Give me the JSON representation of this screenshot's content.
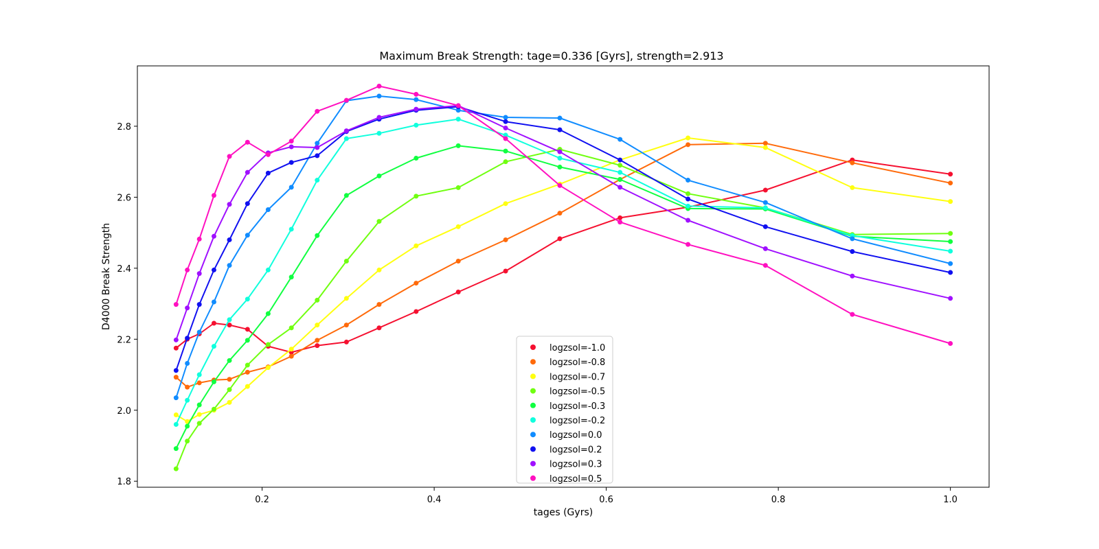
{
  "chart_data": {
    "type": "line",
    "title": "Maximum Break Strength: tage=0.336 [Gyrs], strength=2.913",
    "xlabel": "tages (Gyrs)",
    "ylabel": "D4000 Break Strength",
    "xlim": [
      0.055,
      1.045
    ],
    "ylim": [
      1.783,
      2.97
    ],
    "xticks": [
      0.2,
      0.4,
      0.6,
      0.8,
      1.0
    ],
    "xtick_labels": [
      "0.2",
      "0.4",
      "0.6",
      "0.8",
      "1.0"
    ],
    "yticks": [
      1.8,
      2.0,
      2.2,
      2.4,
      2.6,
      2.8
    ],
    "ytick_labels": [
      "1.8",
      "2.0",
      "2.2",
      "2.4",
      "2.6",
      "2.8"
    ],
    "grid": false,
    "legend_position": "bottom-center",
    "x": [
      0.1,
      0.113,
      0.127,
      0.144,
      0.162,
      0.183,
      0.207,
      0.234,
      0.264,
      0.298,
      0.336,
      0.379,
      0.428,
      0.483,
      0.546,
      0.616,
      0.695,
      0.785,
      0.886,
      1.0
    ],
    "series": [
      {
        "name": "logzsol=-1.0",
        "color": "#f51030",
        "values": [
          2.175,
          2.2,
          2.215,
          2.245,
          2.24,
          2.228,
          2.18,
          2.163,
          2.182,
          2.192,
          2.232,
          2.278,
          2.333,
          2.392,
          2.483,
          2.542,
          2.572,
          2.62,
          2.705,
          2.665
        ]
      },
      {
        "name": "logzsol=-0.8",
        "color": "#ff6a0a",
        "values": [
          2.093,
          2.065,
          2.077,
          2.085,
          2.087,
          2.107,
          2.122,
          2.152,
          2.197,
          2.24,
          2.298,
          2.358,
          2.42,
          2.48,
          2.555,
          2.65,
          2.748,
          2.752,
          2.697,
          2.64
        ]
      },
      {
        "name": "logzsol=-0.7",
        "color": "#ffff10",
        "values": [
          1.987,
          1.968,
          1.988,
          2.0,
          2.022,
          2.067,
          2.12,
          2.172,
          2.24,
          2.315,
          2.395,
          2.463,
          2.517,
          2.582,
          2.637,
          2.705,
          2.767,
          2.74,
          2.627,
          2.588
        ]
      },
      {
        "name": "logzsol=-0.5",
        "color": "#70ff10",
        "values": [
          1.835,
          1.913,
          1.963,
          2.003,
          2.058,
          2.127,
          2.185,
          2.232,
          2.31,
          2.42,
          2.532,
          2.603,
          2.627,
          2.7,
          2.735,
          2.69,
          2.61,
          2.57,
          2.495,
          2.498
        ]
      },
      {
        "name": "logzsol=-0.3",
        "color": "#10ff40",
        "values": [
          1.892,
          1.955,
          2.015,
          2.08,
          2.14,
          2.197,
          2.272,
          2.375,
          2.492,
          2.605,
          2.66,
          2.71,
          2.745,
          2.73,
          2.685,
          2.65,
          2.568,
          2.567,
          2.49,
          2.475
        ]
      },
      {
        "name": "logzsol=-0.2",
        "color": "#10ffdd",
        "values": [
          1.96,
          2.028,
          2.1,
          2.18,
          2.255,
          2.313,
          2.395,
          2.51,
          2.648,
          2.765,
          2.78,
          2.803,
          2.82,
          2.775,
          2.71,
          2.67,
          2.575,
          2.57,
          2.492,
          2.448
        ]
      },
      {
        "name": "logzsol=0.0",
        "color": "#108cff",
        "values": [
          2.035,
          2.132,
          2.22,
          2.305,
          2.408,
          2.493,
          2.565,
          2.628,
          2.752,
          2.872,
          2.885,
          2.875,
          2.845,
          2.825,
          2.823,
          2.763,
          2.648,
          2.585,
          2.483,
          2.413
        ]
      },
      {
        "name": "logzsol=0.2",
        "color": "#1010f0",
        "values": [
          2.112,
          2.203,
          2.298,
          2.395,
          2.48,
          2.582,
          2.668,
          2.698,
          2.717,
          2.785,
          2.82,
          2.845,
          2.855,
          2.813,
          2.79,
          2.705,
          2.595,
          2.517,
          2.447,
          2.388
        ]
      },
      {
        "name": "logzsol=0.3",
        "color": "#a010ff",
        "values": [
          2.198,
          2.288,
          2.385,
          2.49,
          2.58,
          2.67,
          2.725,
          2.742,
          2.74,
          2.787,
          2.825,
          2.848,
          2.858,
          2.795,
          2.728,
          2.628,
          2.535,
          2.455,
          2.378,
          2.315
        ]
      },
      {
        "name": "logzsol=0.5",
        "color": "#ff10c0",
        "values": [
          2.298,
          2.395,
          2.482,
          2.605,
          2.715,
          2.755,
          2.72,
          2.758,
          2.842,
          2.873,
          2.913,
          2.89,
          2.858,
          2.765,
          2.633,
          2.53,
          2.467,
          2.408,
          2.27,
          2.188
        ]
      }
    ]
  }
}
